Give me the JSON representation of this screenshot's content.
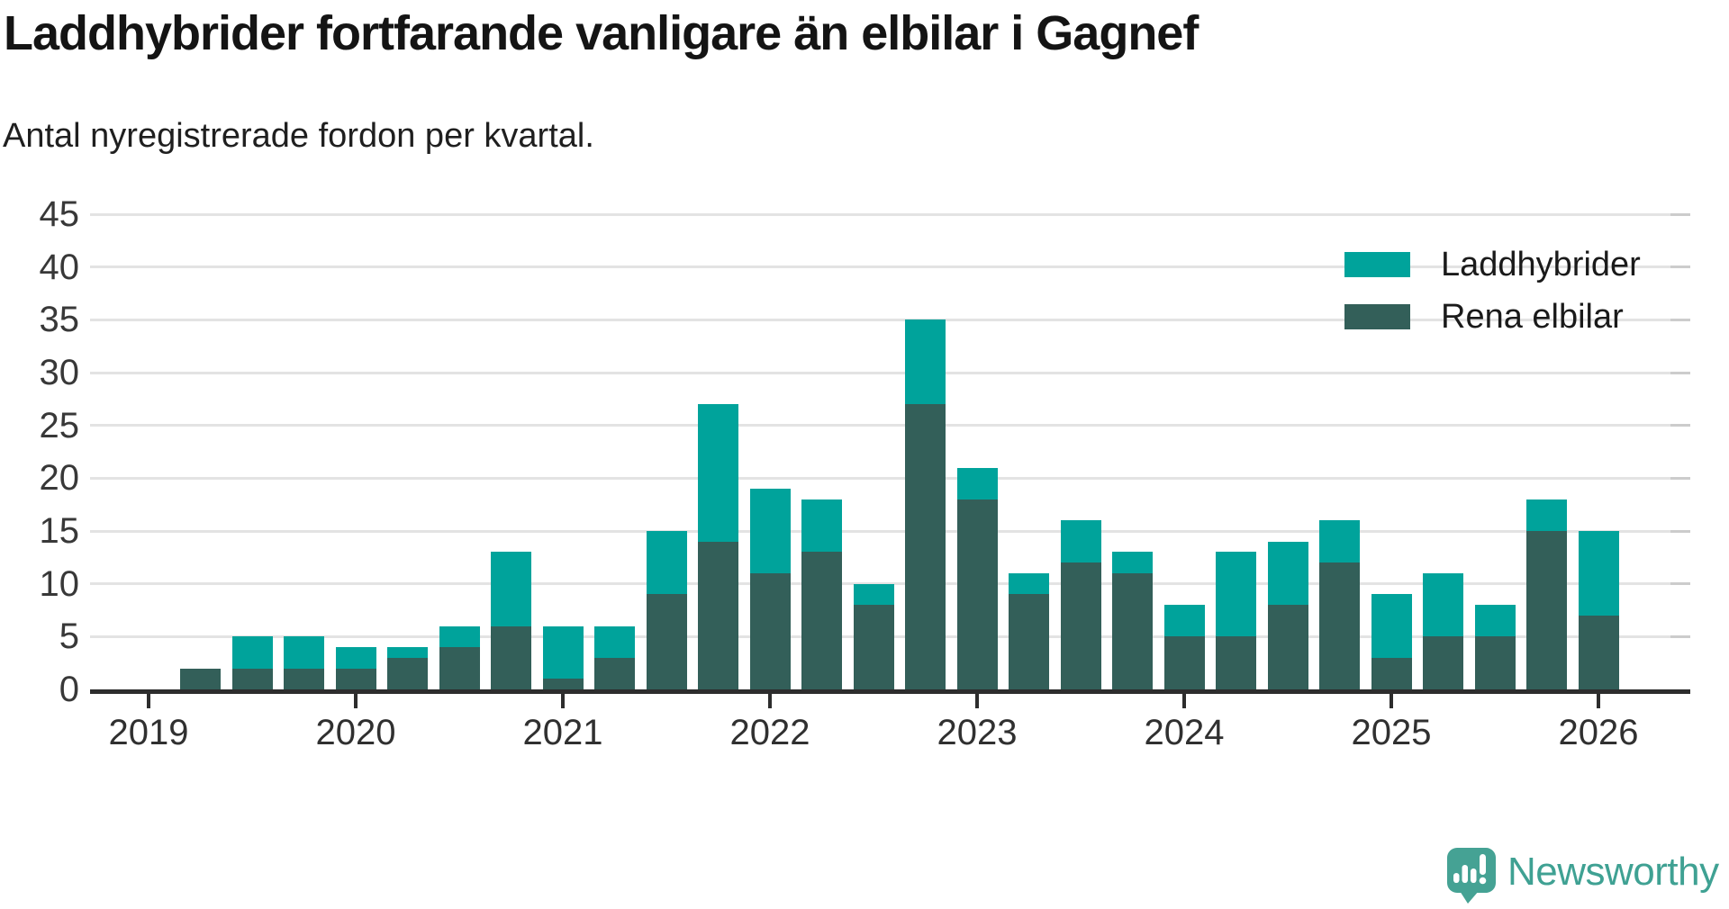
{
  "header": {
    "title": "Laddhybrider fortfarande vanligare än elbilar i Gagnef",
    "subtitle": "Antal nyregistrerade fordon per kvartal."
  },
  "legend": {
    "items": [
      {
        "label": "Laddhybrider",
        "color": "#00a39b"
      },
      {
        "label": "Rena elbilar",
        "color": "#335f59"
      }
    ]
  },
  "chart_data": {
    "type": "bar",
    "stacked": true,
    "title": "Laddhybrider fortfarande vanligare än elbilar i Gagnef",
    "subtitle": "Antal nyregistrerade fordon per kvartal.",
    "xlabel": "",
    "ylabel": "",
    "ylim": [
      0,
      45
    ],
    "grid": "horizontal",
    "legend_position": "top-right",
    "y_ticks": [
      0,
      5,
      10,
      15,
      20,
      25,
      30,
      35,
      40,
      45
    ],
    "x_ticks": [
      "2019",
      "2020",
      "2021",
      "2022",
      "2023",
      "2024",
      "2025",
      "2026"
    ],
    "categories": [
      "2019Q2",
      "2019Q3",
      "2019Q4",
      "2020Q1",
      "2020Q2",
      "2020Q3",
      "2020Q4",
      "2021Q1",
      "2021Q2",
      "2021Q3",
      "2021Q4",
      "2022Q1",
      "2022Q2",
      "2022Q3",
      "2022Q4",
      "2023Q1",
      "2023Q2",
      "2023Q3",
      "2023Q4",
      "2024Q1",
      "2024Q2",
      "2024Q3",
      "2024Q4",
      "2025Q1",
      "2025Q2",
      "2025Q3",
      "2025Q4",
      "2026Q1"
    ],
    "series": [
      {
        "name": "Rena elbilar",
        "color": "#335f59",
        "stack_order": "bottom",
        "values": [
          2,
          2,
          2,
          2,
          3,
          4,
          6,
          1,
          3,
          9,
          14,
          11,
          13,
          8,
          27,
          18,
          9,
          12,
          11,
          5,
          5,
          8,
          12,
          3,
          5,
          5,
          15,
          7
        ]
      },
      {
        "name": "Laddhybrider",
        "color": "#00a39b",
        "stack_order": "top",
        "values": [
          0,
          3,
          3,
          2,
          1,
          2,
          7,
          5,
          3,
          6,
          13,
          8,
          5,
          2,
          8,
          3,
          2,
          4,
          2,
          3,
          8,
          6,
          4,
          6,
          6,
          3,
          3,
          8
        ]
      }
    ],
    "totals": [
      2,
      5,
      5,
      4,
      4,
      6,
      13,
      6,
      6,
      15,
      27,
      19,
      18,
      10,
      35,
      21,
      11,
      16,
      13,
      8,
      13,
      14,
      16,
      9,
      11,
      8,
      18,
      15
    ]
  },
  "branding": {
    "name": "Newsworthy",
    "icon": "newsworthy-speech-bubble-chart-icon",
    "color": "#3fa193",
    "icon_color": "#45a294"
  }
}
